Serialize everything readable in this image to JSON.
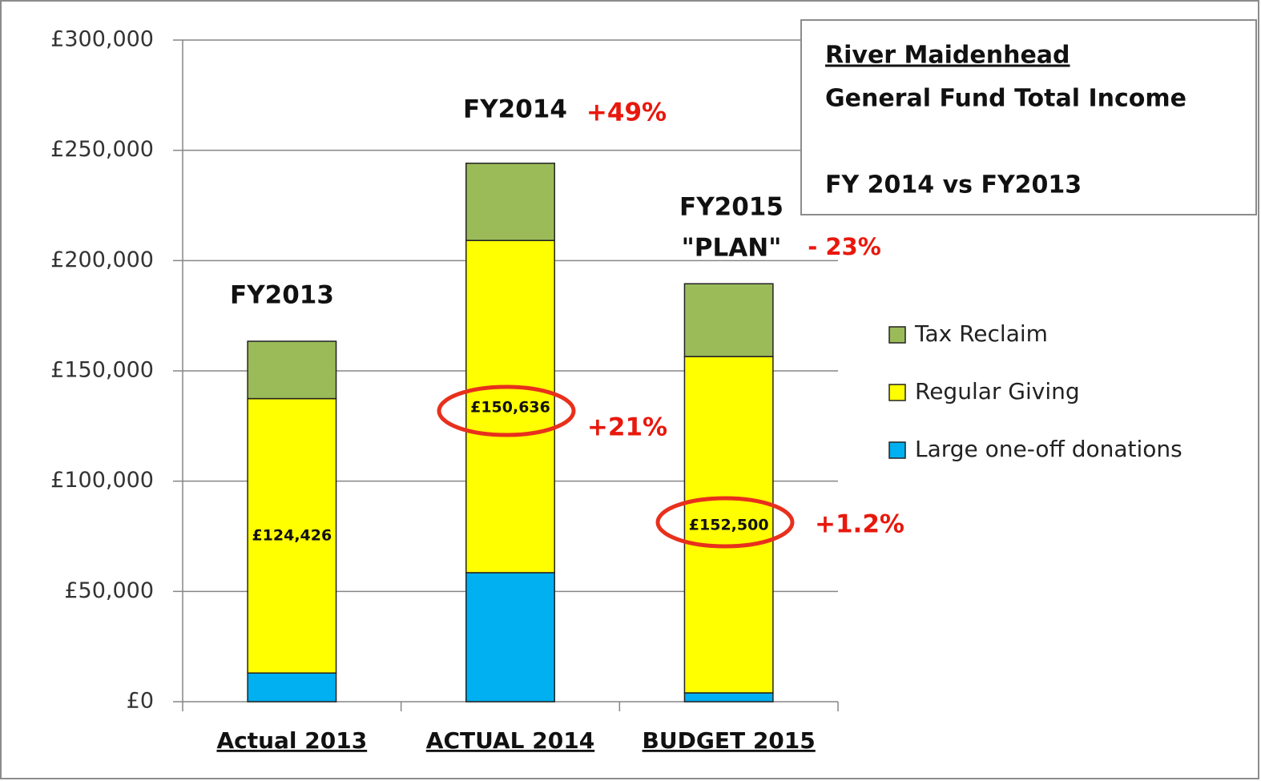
{
  "chart_data": {
    "type": "stacked_bar",
    "title_lines": [
      "River Maidenhead",
      "General Fund  Total Income",
      "FY 2014 vs FY2013"
    ],
    "categories": [
      "Actual 2013",
      "ACTUAL 2014",
      "BUDGET 2015"
    ],
    "series": [
      {
        "name": "Large one-off donations",
        "color": "#00b0f0",
        "values": [
          13000,
          58500,
          4000
        ]
      },
      {
        "name": "Regular Giving",
        "color": "#ffff00",
        "values": [
          124426,
          150636,
          152500
        ],
        "value_labels": [
          "£124,426",
          "£150,636",
          "£152,500"
        ]
      },
      {
        "name": "Tax Reclaim",
        "color": "#9bbb59",
        "values": [
          26000,
          35000,
          33000
        ]
      }
    ],
    "ylim": [
      0,
      300000
    ],
    "yticks": [
      {
        "value": 0,
        "label": "£0"
      },
      {
        "value": 50000,
        "label": "£50,000"
      },
      {
        "value": 100000,
        "label": "£100,000"
      },
      {
        "value": 150000,
        "label": "£150,000"
      },
      {
        "value": 200000,
        "label": "£200,000"
      },
      {
        "value": 250000,
        "label": "£250,000"
      },
      {
        "value": 300000,
        "label": "£300,000"
      }
    ],
    "grid": true,
    "legend": "right",
    "annotations": [
      "FY2013",
      "FY2014",
      "+49%",
      "FY2015",
      "\"PLAN\"",
      "- 23%",
      "+21%",
      "+1.2%"
    ]
  }
}
